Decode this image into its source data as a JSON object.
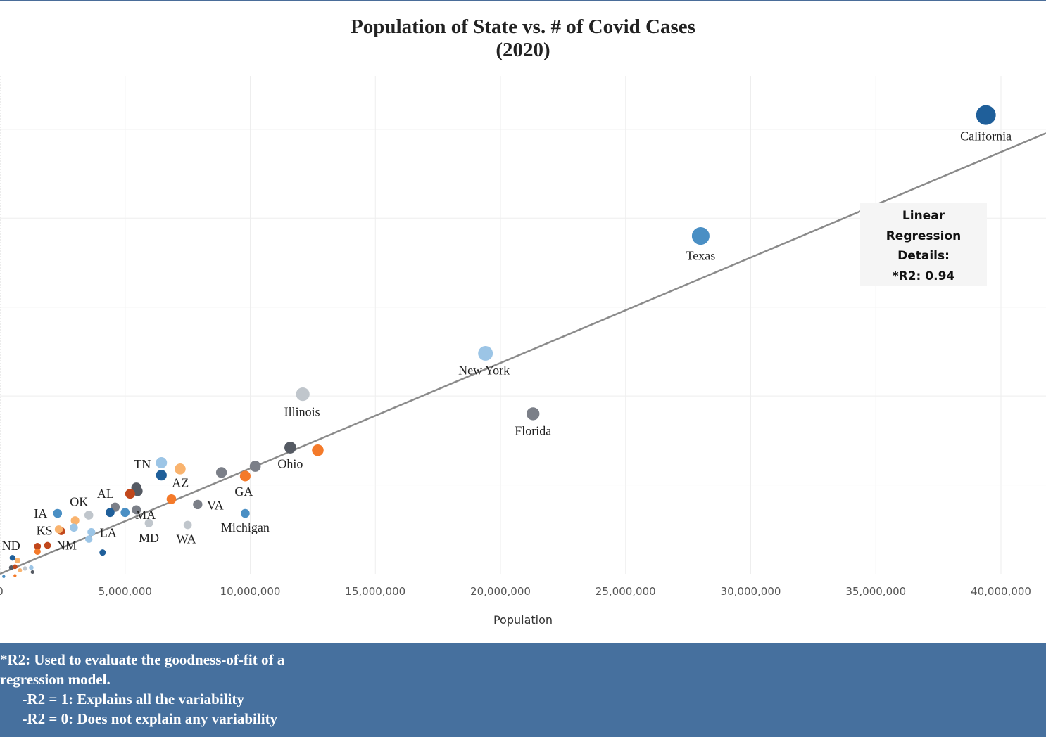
{
  "title_line1": "Population of State vs. # of Covid Cases",
  "title_line2": "(2020)",
  "regression_box": {
    "line1": "Linear",
    "line2": "Regression",
    "line3": "Details:",
    "line4": "*R2: 0.94"
  },
  "footer": {
    "line1": "*R2: Used to evaluate the goodness-of-fit of a",
    "line2": "regression model.",
    "line3": "      -R2 = 1: Explains all the variability",
    "line4": "      -R2 = 0: Does not explain any variability"
  },
  "chart_data": {
    "type": "scatter",
    "xlabel": "Population",
    "ylabel": "",
    "x_ticks": [
      "0",
      "5,000,000",
      "10,000,000",
      "15,000,000",
      "20,000,000",
      "25,000,000",
      "30,000,000",
      "35,000,000",
      "40,000,000"
    ],
    "xlim": [
      0,
      41800000
    ],
    "ylim": [
      0,
      2800000
    ],
    "regression": {
      "slope": 0.0593,
      "intercept": 0,
      "r2": 0.94
    },
    "colors": {
      "dark_blue": "#1f5f9a",
      "blue": "#4a8fc4",
      "light_blue": "#9cc5e6",
      "orange": "#f47a2a",
      "light_orange": "#f9b36e",
      "rust": "#c1471b",
      "gray": "#7b7f88",
      "dark_gray": "#555a63",
      "light_gray": "#c0c6cc",
      "line": "#8a8a8a"
    },
    "points": [
      {
        "label": "California",
        "x": 39400000,
        "y": 2580000,
        "color": "dark_blue"
      },
      {
        "label": "Texas",
        "x": 28000000,
        "y": 1900000,
        "color": "blue"
      },
      {
        "label": "New York",
        "x": 19400000,
        "y": 1240000,
        "color": "light_blue"
      },
      {
        "label": "Illinois",
        "x": 12100000,
        "y": 1010000,
        "color": "light_gray"
      },
      {
        "label": "Florida",
        "x": 21300000,
        "y": 900000,
        "color": "gray"
      },
      {
        "label": "Ohio",
        "x": 11600000,
        "y": 710000,
        "color": "dark_gray"
      },
      {
        "label": "",
        "x": 12700000,
        "y": 695000,
        "color": "orange"
      },
      {
        "label": "",
        "x": 10200000,
        "y": 605000,
        "color": "gray"
      },
      {
        "label": "GA",
        "x": 9800000,
        "y": 550000,
        "color": "orange"
      },
      {
        "label": "",
        "x": 8850000,
        "y": 570000,
        "color": "gray"
      },
      {
        "label": "TN",
        "x": 6450000,
        "y": 625000,
        "color": "light_blue"
      },
      {
        "label": "",
        "x": 7200000,
        "y": 590000,
        "color": "light_orange"
      },
      {
        "label": "AZ",
        "x": 6450000,
        "y": 555000,
        "color": "dark_blue"
      },
      {
        "label": "",
        "x": 5450000,
        "y": 485000,
        "color": "dark_gray"
      },
      {
        "label": "",
        "x": 5500000,
        "y": 465000,
        "color": "dark_gray"
      },
      {
        "label": "AL",
        "x": 5200000,
        "y": 450000,
        "color": "rust"
      },
      {
        "label": "",
        "x": 6850000,
        "y": 420000,
        "color": "orange"
      },
      {
        "label": "VA",
        "x": 7900000,
        "y": 390000,
        "color": "gray"
      },
      {
        "label": "Michigan",
        "x": 9800000,
        "y": 340000,
        "color": "blue"
      },
      {
        "label": "",
        "x": 5450000,
        "y": 360000,
        "color": "gray"
      },
      {
        "label": "MA",
        "x": 5000000,
        "y": 345000,
        "color": "blue"
      },
      {
        "label": "",
        "x": 4600000,
        "y": 375000,
        "color": "gray"
      },
      {
        "label": "",
        "x": 4400000,
        "y": 345000,
        "color": "dark_blue"
      },
      {
        "label": "MD",
        "x": 5950000,
        "y": 285000,
        "color": "light_gray"
      },
      {
        "label": "WA",
        "x": 7500000,
        "y": 275000,
        "color": "light_gray"
      },
      {
        "label": "OK",
        "x": 3550000,
        "y": 330000,
        "color": "light_gray"
      },
      {
        "label": "IA",
        "x": 2300000,
        "y": 340000,
        "color": "blue"
      },
      {
        "label": "",
        "x": 3000000,
        "y": 300000,
        "color": "light_orange"
      },
      {
        "label": "KS",
        "x": 2450000,
        "y": 240000,
        "color": "rust"
      },
      {
        "label": "",
        "x": 2350000,
        "y": 250000,
        "color": "light_orange"
      },
      {
        "label": "",
        "x": 2950000,
        "y": 260000,
        "color": "light_blue"
      },
      {
        "label": "LA",
        "x": 3650000,
        "y": 235000,
        "color": "light_blue"
      },
      {
        "label": "",
        "x": 3550000,
        "y": 195000,
        "color": "light_blue"
      },
      {
        "label": "",
        "x": 4100000,
        "y": 120000,
        "color": "dark_blue"
      },
      {
        "label": "NM",
        "x": 1900000,
        "y": 160000,
        "color": "rust"
      },
      {
        "label": "",
        "x": 1500000,
        "y": 155000,
        "color": "rust"
      },
      {
        "label": "",
        "x": 1500000,
        "y": 125000,
        "color": "orange"
      },
      {
        "label": "ND",
        "x": 500000,
        "y": 90000,
        "color": "dark_blue"
      },
      {
        "label": "",
        "x": 700000,
        "y": 75000,
        "color": "light_orange"
      },
      {
        "label": "",
        "x": 450000,
        "y": 35000,
        "color": "dark_gray"
      },
      {
        "label": "",
        "x": 600000,
        "y": 40000,
        "color": "rust"
      },
      {
        "label": "",
        "x": 1000000,
        "y": 30000,
        "color": "light_gray"
      },
      {
        "label": "",
        "x": 1250000,
        "y": 35000,
        "color": "light_blue"
      },
      {
        "label": "",
        "x": 1300000,
        "y": 10000,
        "color": "dark_gray"
      },
      {
        "label": "",
        "x": 800000,
        "y": 20000,
        "color": "light_orange"
      },
      {
        "label": "",
        "x": 600000,
        "y": -10000,
        "color": "orange"
      },
      {
        "label": "",
        "x": 150000,
        "y": -15000,
        "color": "blue"
      }
    ]
  }
}
